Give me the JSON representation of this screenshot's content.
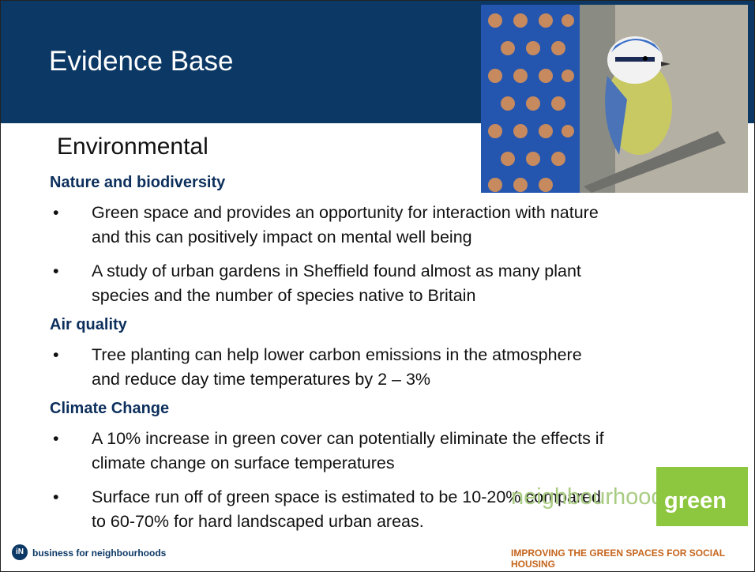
{
  "header": {
    "title": "Evidence Base"
  },
  "subtitle": "Environmental",
  "sections": [
    {
      "heading": "Nature and biodiversity",
      "bullets": [
        "Green space and provides an opportunity for interaction with nature and this can positively impact on mental well being",
        "A study of urban gardens in Sheffield found almost as many plant species and the number of species native to Britain"
      ]
    },
    {
      "heading": "Air quality",
      "bullets": [
        "Tree planting can help lower carbon emissions in the atmosphere and reduce day time temperatures by 2 – 3%"
      ]
    },
    {
      "heading": "Climate Change",
      "bullets": [
        "A 10% increase in green cover can potentially eliminate the effects if climate change on surface temperatures",
        "Surface run off of green space is estimated to be 10-20% compared to 60-70% for hard landscaped urban areas."
      ]
    }
  ],
  "footer": {
    "logo_text": "business for neighbourhoods",
    "brand_word": "neighbourhoods",
    "brand_green": "green",
    "tagline": "IMPROVING THE GREEN SPACES FOR SOCIAL HOUSING"
  }
}
